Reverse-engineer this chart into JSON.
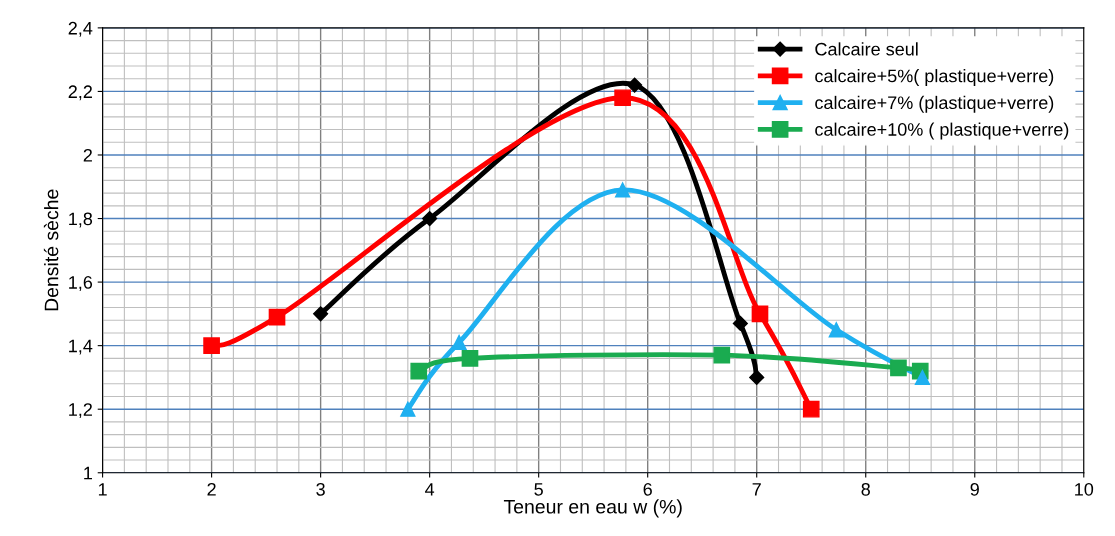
{
  "chart_data": {
    "type": "line",
    "xlabel": "Teneur en eau w (%)",
    "ylabel": "Densité sèche",
    "xlim": [
      1,
      10
    ],
    "xticks": [
      1,
      2,
      3,
      4,
      5,
      6,
      7,
      8,
      9,
      10
    ],
    "ylim": [
      1,
      2.4
    ],
    "yticks": [
      {
        "value": 1,
        "label": "1"
      },
      {
        "value": 1.2,
        "label": "1,2"
      },
      {
        "value": 1.4,
        "label": "1,4"
      },
      {
        "value": 1.6,
        "label": "1,6"
      },
      {
        "value": 1.8,
        "label": "1,8"
      },
      {
        "value": 2,
        "label": "2"
      },
      {
        "value": 2.2,
        "label": "2,2"
      },
      {
        "value": 2.4,
        "label": "2,4"
      }
    ],
    "grid": true,
    "legend": "top right",
    "series": [
      {
        "name": "Calcaire seul",
        "color": "#000000",
        "marker": "diamond",
        "x": [
          3,
          4,
          5.88,
          6.85,
          7
        ],
        "values": [
          1.5,
          1.8,
          2.22,
          1.47,
          1.3
        ]
      },
      {
        "name": "calcaire+5%( plastique+verre)",
        "color": "#ff0000",
        "marker": "square",
        "x": [
          2,
          2.6,
          5.77,
          7.03,
          7.5
        ],
        "values": [
          1.4,
          1.49,
          2.18,
          1.5,
          1.2
        ]
      },
      {
        "name": "calcaire+7% (plastique+verre)",
        "color": "#1fb0f0",
        "marker": "triangle",
        "x": [
          3.8,
          4.27,
          5.77,
          7.73,
          8.52
        ],
        "values": [
          1.2,
          1.41,
          1.89,
          1.45,
          1.3
        ]
      },
      {
        "name": "calcaire+10% ( plastique+verre)",
        "color": "#1aab50",
        "marker": "square",
        "x": [
          3.9,
          4.37,
          6.68,
          8.3,
          8.5
        ],
        "values": [
          1.32,
          1.36,
          1.37,
          1.33,
          1.32
        ]
      }
    ]
  }
}
